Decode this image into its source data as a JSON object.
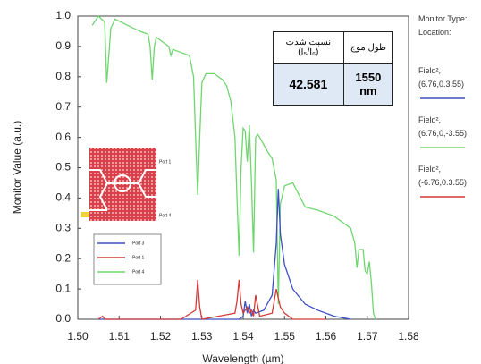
{
  "chart_data": {
    "type": "line",
    "xlabel": "Wavelength (µm)",
    "ylabel": "Monitor Value (a.u.)",
    "xlim": [
      1.5,
      1.58
    ],
    "xticks": [
      {
        "value": 1.5,
        "label": "1.50"
      },
      1.51,
      1.52,
      1.53,
      1.54,
      1.55,
      1.56,
      1.57,
      1.58
    ],
    "ylim": [
      0,
      1
    ],
    "yticks": [
      {
        "value": 0,
        "label": "0.0"
      },
      0.1,
      0.2,
      0.3,
      0.4,
      0.5,
      0.6,
      0.7,
      0.8,
      0.9,
      {
        "value": 1,
        "label": "1.0"
      }
    ],
    "legend_title": [
      "Monitor Type:",
      "Location:"
    ],
    "series": [
      {
        "name": "Field², (6.76,0,-3.55)",
        "color": "#6fd66f",
        "x": [
          1.5035,
          1.505,
          1.5065,
          1.507,
          1.508,
          1.509,
          1.512,
          1.515,
          1.517,
          1.5175,
          1.518,
          1.5185,
          1.519,
          1.521,
          1.522,
          1.5225,
          1.523,
          1.525,
          1.527,
          1.528,
          1.5285,
          1.529,
          1.5295,
          1.53,
          1.531,
          1.533,
          1.535,
          1.536,
          1.537,
          1.538,
          1.5385,
          1.539,
          1.5395,
          1.54,
          1.5405,
          1.541,
          1.5415,
          1.542,
          1.5425,
          1.543,
          1.5435,
          1.544,
          1.546,
          1.547,
          1.548,
          1.5485,
          1.549,
          1.55,
          1.552,
          1.555,
          1.558,
          1.562,
          1.564,
          1.566,
          1.567,
          1.5675,
          1.568,
          1.569,
          1.5695,
          1.57,
          1.5705,
          1.571,
          1.5715,
          1.572
        ],
        "values": [
          0.97,
          1.0,
          0.98,
          0.78,
          0.96,
          0.99,
          0.97,
          0.95,
          0.94,
          0.9,
          0.79,
          0.9,
          0.93,
          0.91,
          0.9,
          0.87,
          0.89,
          0.88,
          0.87,
          0.8,
          0.6,
          0.41,
          0.6,
          0.78,
          0.81,
          0.81,
          0.79,
          0.77,
          0.72,
          0.6,
          0.4,
          0.21,
          0.5,
          0.63,
          0.62,
          0.52,
          0.64,
          0.45,
          0.22,
          0.6,
          0.61,
          0.6,
          0.55,
          0.53,
          0.46,
          0.05,
          0.38,
          0.44,
          0.45,
          0.37,
          0.36,
          0.34,
          0.32,
          0.3,
          0.25,
          0.17,
          0.23,
          0.23,
          0.16,
          0.15,
          0.19,
          0.12,
          0.02,
          0.0
        ]
      },
      {
        "name": "Field², (6.76,0.3.55)",
        "color": "#3b4fc4",
        "x": [
          1.505,
          1.539,
          1.54,
          1.5405,
          1.541,
          1.5415,
          1.542,
          1.5425,
          1.543,
          1.545,
          1.547,
          1.548,
          1.5485,
          1.549,
          1.55,
          1.552,
          1.555,
          1.558,
          1.562,
          1.566
        ],
        "values": [
          0,
          0,
          0.01,
          0.06,
          0.02,
          0.05,
          0.01,
          0.03,
          0.02,
          0.03,
          0.08,
          0.25,
          0.43,
          0.28,
          0.18,
          0.1,
          0.05,
          0.03,
          0.01,
          0.0
        ]
      },
      {
        "name": "Field², (-6.76,0.3.55)",
        "color": "#d43a3a",
        "x": [
          1.505,
          1.506,
          1.5065,
          1.525,
          1.5285,
          1.529,
          1.5295,
          1.53,
          1.538,
          1.5385,
          1.539,
          1.5395,
          1.54,
          1.541,
          1.5415,
          1.542,
          1.5425,
          1.543,
          1.544,
          1.547,
          1.548,
          1.549,
          1.55,
          1.552,
          1.56
        ],
        "values": [
          0,
          0.01,
          0,
          0,
          0.03,
          0.13,
          0.04,
          0.0,
          0.02,
          0.06,
          0.13,
          0.05,
          0.02,
          0.04,
          0.02,
          0.03,
          0.01,
          0.08,
          0.01,
          0.02,
          0.1,
          0.04,
          0.02,
          0.0,
          0.0
        ]
      }
    ],
    "legend_order": [
      1,
      0,
      2
    ],
    "table": {
      "header": [
        "نسبت شدت (I₅/I₆)",
        "طول موج"
      ],
      "row": [
        "42.581",
        "1550 nm"
      ]
    },
    "inset_legend": [
      {
        "name": "Port 3",
        "color": "#3b4fc4"
      },
      {
        "name": "Port 1",
        "color": "#d43a3a"
      },
      {
        "name": "Port 4",
        "color": "#6fd66f"
      }
    ],
    "device_labels": [
      "Port 1",
      "Port 4"
    ]
  }
}
